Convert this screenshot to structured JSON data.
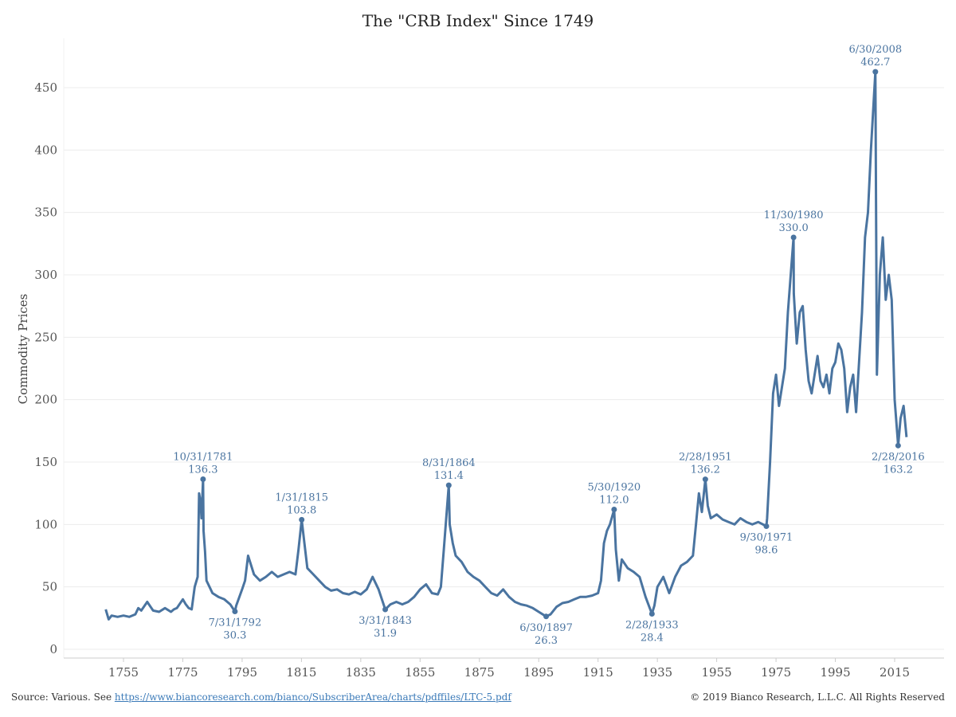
{
  "chart_data": {
    "type": "line",
    "title": "The \"CRB Index\" Since 1749",
    "ylabel": "Commodity Prices",
    "xlabel": "",
    "xlim": [
      1742,
      2022
    ],
    "ylim": [
      0,
      470
    ],
    "x_ticks": [
      1755,
      1775,
      1795,
      1815,
      1835,
      1855,
      1875,
      1895,
      1915,
      1935,
      1955,
      1975,
      1995,
      2015
    ],
    "y_ticks": [
      0,
      50,
      100,
      150,
      200,
      250,
      300,
      350,
      400,
      450
    ],
    "grid": "horizontal",
    "line_color": "#4a74a0",
    "series": [
      {
        "x": [
          1749,
          1750,
          1751,
          1753,
          1755,
          1757,
          1759,
          1760,
          1761,
          1763,
          1765,
          1767,
          1769,
          1771,
          1772,
          1773,
          1775,
          1776,
          1777,
          1778,
          1779,
          1780,
          1780.5,
          1781,
          1781.3,
          1781.83,
          1782,
          1782.5,
          1783,
          1784,
          1785,
          1787,
          1789,
          1791,
          1792.58,
          1793,
          1795,
          1796,
          1797,
          1799,
          1801,
          1803,
          1805,
          1807,
          1809,
          1811,
          1813,
          1814,
          1815.08,
          1816,
          1817,
          1819,
          1821,
          1823,
          1825,
          1827,
          1829,
          1831,
          1833,
          1835,
          1837,
          1839,
          1841,
          1843.25,
          1845,
          1847,
          1849,
          1851,
          1853,
          1855,
          1857,
          1859,
          1861,
          1862,
          1863,
          1864.67,
          1865,
          1866,
          1867,
          1869,
          1871,
          1873,
          1875,
          1877,
          1879,
          1881,
          1883,
          1885,
          1887,
          1889,
          1891,
          1893,
          1895,
          1897.5,
          1899,
          1901,
          1903,
          1905,
          1907,
          1909,
          1911,
          1913,
          1915,
          1916,
          1917,
          1918,
          1919,
          1920.42,
          1921,
          1922,
          1923,
          1925,
          1927,
          1929,
          1931,
          1933.17,
          1934,
          1935,
          1937,
          1939,
          1941,
          1943,
          1945,
          1947,
          1948,
          1949,
          1950,
          1951.17,
          1952,
          1953,
          1955,
          1957,
          1959,
          1961,
          1963,
          1965,
          1967,
          1969,
          1971.75,
          1972,
          1973,
          1974,
          1975,
          1976,
          1977,
          1978,
          1979,
          1980.92,
          1981,
          1982,
          1983,
          1984,
          1985,
          1986,
          1987,
          1988,
          1989,
          1990,
          1991,
          1992,
          1993,
          1994,
          1995,
          1996,
          1997,
          1998,
          1999,
          2000,
          2001,
          2002,
          2003,
          2004,
          2005,
          2006,
          2007,
          2008.5,
          2009,
          2010,
          2011,
          2012,
          2013,
          2014,
          2015,
          2016.17,
          2017,
          2018,
          2019
        ],
        "y": [
          32,
          24,
          27,
          26,
          27,
          26,
          28,
          33,
          31,
          38,
          31,
          30,
          33,
          30,
          32,
          33,
          40,
          36,
          33,
          32,
          50,
          58,
          125,
          118,
          105,
          136.3,
          95,
          78,
          55,
          50,
          45,
          42,
          40,
          36,
          30.3,
          35,
          48,
          55,
          75,
          60,
          55,
          58,
          62,
          58,
          60,
          62,
          60,
          80,
          103.8,
          85,
          65,
          60,
          55,
          50,
          47,
          48,
          45,
          44,
          46,
          44,
          48,
          58,
          48,
          31.9,
          36,
          38,
          36,
          38,
          42,
          48,
          52,
          45,
          44,
          50,
          80,
          131.4,
          100,
          85,
          75,
          70,
          62,
          58,
          55,
          50,
          45,
          43,
          48,
          42,
          38,
          36,
          35,
          33,
          30,
          26.3,
          28,
          34,
          37,
          38,
          40,
          42,
          42,
          43,
          45,
          55,
          85,
          95,
          100,
          112.0,
          80,
          55,
          72,
          65,
          62,
          58,
          42,
          28.4,
          35,
          50,
          58,
          45,
          58,
          67,
          70,
          75,
          100,
          125,
          110,
          136.2,
          115,
          105,
          108,
          104,
          102,
          100,
          105,
          102,
          100,
          102,
          98.6,
          105,
          150,
          205,
          220,
          195,
          210,
          225,
          270,
          330.0,
          285,
          245,
          270,
          275,
          240,
          215,
          205,
          220,
          235,
          215,
          210,
          220,
          205,
          225,
          230,
          245,
          240,
          225,
          190,
          210,
          220,
          190,
          230,
          270,
          330,
          350,
          400,
          462.7,
          220,
          300,
          330,
          280,
          300,
          280,
          200,
          163.2,
          185,
          195,
          170
        ]
      }
    ],
    "annotations": [
      {
        "date": "10/31/1781",
        "value": "136.3",
        "x": 1781.83,
        "y": 136.3,
        "pos": "above"
      },
      {
        "date": "7/31/1792",
        "value": "30.3",
        "x": 1792.58,
        "y": 30.3,
        "pos": "below"
      },
      {
        "date": "1/31/1815",
        "value": "103.8",
        "x": 1815.08,
        "y": 103.8,
        "pos": "above"
      },
      {
        "date": "3/31/1843",
        "value": "31.9",
        "x": 1843.25,
        "y": 31.9,
        "pos": "below"
      },
      {
        "date": "8/31/1864",
        "value": "131.4",
        "x": 1864.67,
        "y": 131.4,
        "pos": "above"
      },
      {
        "date": "6/30/1897",
        "value": "26.3",
        "x": 1897.5,
        "y": 26.3,
        "pos": "below"
      },
      {
        "date": "5/30/1920",
        "value": "112.0",
        "x": 1920.42,
        "y": 112.0,
        "pos": "above"
      },
      {
        "date": "2/28/1933",
        "value": "28.4",
        "x": 1933.17,
        "y": 28.4,
        "pos": "below"
      },
      {
        "date": "2/28/1951",
        "value": "136.2",
        "x": 1951.17,
        "y": 136.2,
        "pos": "above"
      },
      {
        "date": "9/30/1971",
        "value": "98.6",
        "x": 1971.75,
        "y": 98.6,
        "pos": "below"
      },
      {
        "date": "11/30/1980",
        "value": "330.0",
        "x": 1980.92,
        "y": 330.0,
        "pos": "above"
      },
      {
        "date": "6/30/2008",
        "value": "462.7",
        "x": 2008.5,
        "y": 462.7,
        "pos": "above"
      },
      {
        "date": "2/28/2016",
        "value": "163.2",
        "x": 2016.17,
        "y": 163.2,
        "pos": "below"
      }
    ]
  },
  "footer": {
    "source_prefix": "Source: Various. See ",
    "source_link": "https://www.biancoresearch.com/bianco/SubscriberArea/charts/pdffiles/LTC-5.pdf",
    "copyright": "© 2019 Bianco Research, L.L.C. All Rights Reserved"
  }
}
